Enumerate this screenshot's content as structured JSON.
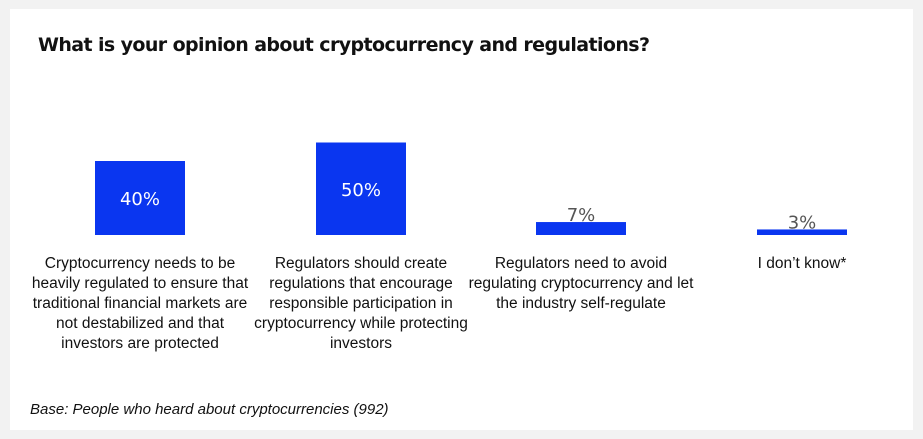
{
  "chart_data": {
    "type": "bar",
    "title": "What is your opinion about cryptocurrency and regulations?",
    "categories": [
      "Cryptocurrency needs to be heavily regulated to ensure that traditional financial markets are not destabilized and that investors are protected",
      "Regulators should create regulations that encourage responsible participation in cryptocurrency while protecting investors",
      "Regulators need to avoid regulating cryptocurrency and let the industry self-regulate",
      "I don’t know*"
    ],
    "values": [
      40,
      50,
      7,
      3
    ],
    "data_labels": [
      "40%",
      "50%",
      "7%",
      "3%"
    ],
    "unit": "%",
    "ylim": [
      0,
      100
    ],
    "grid": false,
    "bar_color": "#0a36f0",
    "inside_label_color": "#ffffff",
    "outside_label_color": "#555555"
  },
  "footnote": "Base: People who heard about cryptocurrencies (992)"
}
